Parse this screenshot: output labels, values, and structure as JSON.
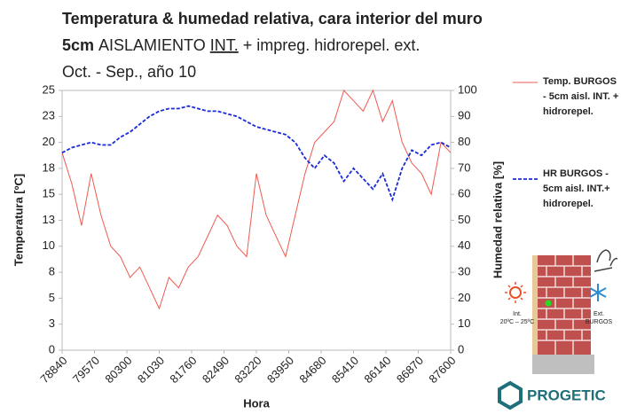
{
  "chart_data": {
    "type": "line",
    "title": "Temperatura & humedad relativa, cara interior del muro",
    "subtitle": [
      "5cm",
      "AISLAMIENTO",
      "INT.",
      "+ impreg. hidrorepel. ext."
    ],
    "period": "Oct. - Sep., año 10",
    "xlabel": "Hora",
    "ylabel": "Temperatura [ºC]",
    "y2label": "Humedad relativa [%]",
    "x": [
      78840,
      79059,
      79278,
      79497,
      79716,
      79935,
      80154,
      80373,
      80592,
      80811,
      81030,
      81249,
      81468,
      81687,
      81906,
      82125,
      82344,
      82563,
      82782,
      83001,
      83220,
      83439,
      83658,
      83877,
      84096,
      84315,
      84534,
      84753,
      84972,
      85191,
      85410,
      85629,
      85848,
      86067,
      86286,
      86505,
      86724,
      86943,
      87162,
      87381,
      87600
    ],
    "series": [
      {
        "name": "Temp. BURGOS - 5cm aisl. INT. + hidrorepel.",
        "color": "#ee5a52",
        "dash": false,
        "values": [
          19,
          16,
          12,
          17,
          13,
          10,
          9,
          7,
          8,
          6,
          4,
          7,
          6,
          8,
          9,
          11,
          13,
          12,
          10,
          9,
          17,
          13,
          11,
          9,
          13,
          17,
          20,
          21,
          22,
          25,
          24,
          23,
          25,
          22,
          24,
          20,
          18,
          17,
          15,
          20,
          19
        ]
      },
      {
        "name": "HR BURGOS - 5cm aisl. INT.+ hidrorepel.",
        "color": "#1a2bd8",
        "dash": true,
        "axis": "y2",
        "values": [
          76,
          78,
          79,
          80,
          79,
          79,
          82,
          84,
          87,
          90,
          92,
          93,
          93,
          94,
          93,
          92,
          92,
          91,
          90,
          88,
          86,
          85,
          84,
          83,
          80,
          74,
          70,
          75,
          72,
          65,
          70,
          66,
          62,
          68,
          58,
          70,
          77,
          75,
          79,
          80,
          78
        ]
      }
    ],
    "xlim": [
      78840,
      87600
    ],
    "xticks": [
      78840,
      79570,
      80300,
      81030,
      81760,
      82490,
      83220,
      83950,
      84680,
      85410,
      86140,
      86870,
      87600
    ],
    "ylim": [
      0,
      25
    ],
    "yticks": [
      0,
      {
        "value": 2.5,
        "label": "3"
      },
      5,
      {
        "value": 7.5,
        "label": "8"
      },
      10,
      {
        "value": 12.5,
        "label": "13"
      },
      15,
      {
        "value": 17.5,
        "label": "18"
      },
      20,
      {
        "value": 22.5,
        "label": "23"
      },
      25
    ],
    "y2lim": [
      0,
      100
    ],
    "y2ticks": [
      0,
      10,
      20,
      30,
      40,
      50,
      60,
      70,
      80,
      90,
      100
    ],
    "grid": false
  },
  "illustration": {
    "interior": "Int.",
    "interior_range": "20ºC – 25ºC",
    "exterior": "Ext.",
    "exterior_city": "BURGOS"
  },
  "logo": "PROGETIC"
}
